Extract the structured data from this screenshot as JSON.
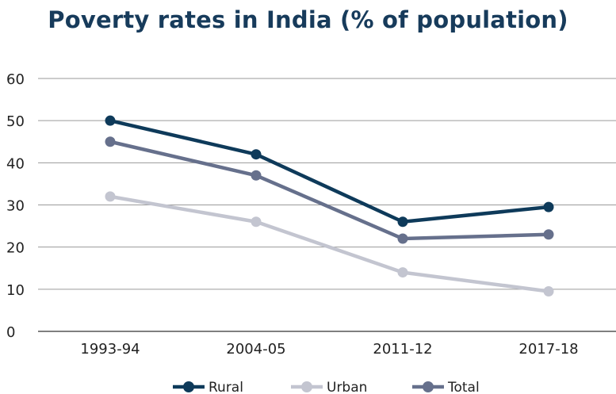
{
  "chart_data": {
    "type": "line",
    "title": "Poverty rates in India (% of population)",
    "xlabel": "",
    "ylabel": "",
    "categories": [
      "1993-94",
      "2004-05",
      "2011-12",
      "2017-18"
    ],
    "ylim": [
      0,
      60
    ],
    "yticks": [
      0,
      10,
      20,
      30,
      40,
      50,
      60
    ],
    "grid": "horizontal",
    "legend_position": "bottom",
    "series": [
      {
        "name": "Rural",
        "values": [
          50,
          42,
          26,
          29.5
        ],
        "color": "#0e3a5a"
      },
      {
        "name": "Urban",
        "values": [
          32,
          26,
          14,
          9.5
        ],
        "color": "#c3c5d0"
      },
      {
        "name": "Total",
        "values": [
          45,
          37,
          22,
          23
        ],
        "color": "#66708c"
      }
    ]
  }
}
